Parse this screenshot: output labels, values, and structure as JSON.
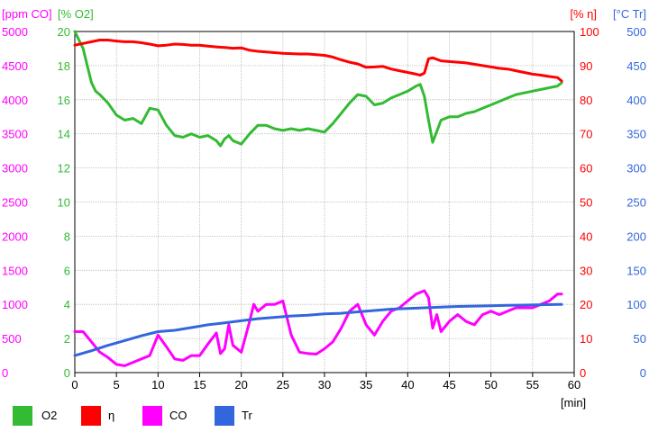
{
  "chart_data": {
    "type": "line",
    "x_unit": "[min]",
    "x_ticks": [
      "0",
      "5",
      "10",
      "15",
      "20",
      "25",
      "30",
      "35",
      "40",
      "45",
      "50",
      "55",
      "60"
    ],
    "xlim": [
      0,
      60
    ],
    "grid": true,
    "legend_position": "bottom",
    "axes": [
      {
        "id": "co",
        "side": "left-outer",
        "unit": "[ppm CO]",
        "range": [
          0,
          5000
        ],
        "color": "#ff00ff",
        "ticks": [
          "0",
          "500",
          "1000",
          "1500",
          "2000",
          "2500",
          "3000",
          "3500",
          "4000",
          "4500",
          "5000"
        ]
      },
      {
        "id": "o2",
        "side": "left-inner",
        "unit": "[% O2]",
        "range": [
          0,
          20
        ],
        "color": "#33bb33",
        "ticks": [
          "0",
          "2",
          "4",
          "6",
          "8",
          "10",
          "12",
          "14",
          "16",
          "18",
          "20"
        ]
      },
      {
        "id": "eta",
        "side": "right-inner",
        "unit": "[% η]",
        "range": [
          0,
          100
        ],
        "color": "#ff0000",
        "ticks": [
          "0",
          "10",
          "20",
          "30",
          "40",
          "50",
          "60",
          "70",
          "80",
          "90",
          "100"
        ]
      },
      {
        "id": "tr",
        "side": "right-outer",
        "unit": "[°C Tr]",
        "range": [
          0,
          500
        ],
        "color": "#3366dd",
        "ticks": [
          "0",
          "50",
          "100",
          "150",
          "200",
          "250",
          "300",
          "350",
          "400",
          "450",
          "500"
        ]
      }
    ],
    "series": [
      {
        "name": "O2",
        "axis": "o2",
        "color": "#33bb33",
        "x": [
          0,
          1,
          1.5,
          2,
          2.5,
          3,
          4,
          5,
          6,
          7,
          8,
          9,
          10,
          11,
          12,
          13,
          14,
          15,
          16,
          17,
          17.5,
          18,
          18.5,
          19,
          20,
          21,
          22,
          23,
          24,
          25,
          26,
          27,
          28,
          29,
          30,
          31,
          32,
          33,
          34,
          35,
          36,
          37,
          38,
          39,
          40,
          41,
          41.5,
          42,
          42.5,
          43,
          44,
          45,
          46,
          47,
          48,
          49,
          50,
          51,
          52,
          53,
          54,
          55,
          56,
          57,
          58,
          58.5
        ],
        "y": [
          20,
          19,
          18,
          17,
          16.5,
          16.3,
          15.8,
          15.1,
          14.8,
          14.9,
          14.6,
          15.5,
          15.4,
          14.5,
          13.9,
          13.8,
          14,
          13.8,
          13.9,
          13.6,
          13.3,
          13.7,
          13.9,
          13.6,
          13.4,
          14,
          14.5,
          14.5,
          14.3,
          14.2,
          14.3,
          14.2,
          14.3,
          14.2,
          14.1,
          14.6,
          15.2,
          15.8,
          16.3,
          16.2,
          15.7,
          15.8,
          16.1,
          16.3,
          16.5,
          16.8,
          16.9,
          16.2,
          14.8,
          13.5,
          14.8,
          15,
          15,
          15.2,
          15.3,
          15.5,
          15.7,
          15.9,
          16.1,
          16.3,
          16.4,
          16.5,
          16.6,
          16.7,
          16.8,
          17
        ]
      },
      {
        "name": "η",
        "axis": "eta",
        "color": "#ff0000",
        "x": [
          0,
          1,
          2,
          3,
          4,
          5,
          6,
          7,
          8,
          9,
          10,
          11,
          12,
          13,
          14,
          15,
          16,
          17,
          18,
          19,
          20,
          21,
          22,
          23,
          24,
          25,
          26,
          27,
          28,
          29,
          30,
          31,
          32,
          33,
          34,
          35,
          36,
          37,
          38,
          39,
          40,
          41,
          41.5,
          42,
          42.5,
          43,
          44,
          45,
          46,
          47,
          48,
          49,
          50,
          51,
          52,
          53,
          54,
          55,
          56,
          57,
          58,
          58.5
        ],
        "y": [
          96,
          96.5,
          97,
          97.5,
          97.5,
          97.2,
          97,
          97,
          96.7,
          96.3,
          95.8,
          96,
          96.3,
          96.2,
          96,
          96,
          95.7,
          95.5,
          95.3,
          95.1,
          95.2,
          94.5,
          94.2,
          94,
          93.8,
          93.6,
          93.5,
          93.4,
          93.4,
          93.2,
          93,
          92.5,
          91.7,
          91,
          90.5,
          89.5,
          89.6,
          89.8,
          89,
          88.5,
          88,
          87.5,
          87.2,
          87.8,
          92,
          92.3,
          91.4,
          91.2,
          91,
          90.8,
          90.4,
          90,
          89.6,
          89.2,
          89,
          88.5,
          88,
          87.5,
          87.2,
          86.8,
          86.5,
          85.5
        ]
      },
      {
        "name": "CO",
        "axis": "co",
        "color": "#ff00ff",
        "x": [
          0,
          1,
          2,
          3,
          4,
          5,
          6,
          7,
          8,
          9,
          10,
          11,
          12,
          13,
          14,
          15,
          16,
          17,
          17.5,
          18,
          18.5,
          19,
          20,
          21,
          21.5,
          22,
          23,
          24,
          25,
          26,
          27,
          28,
          29,
          30,
          31,
          32,
          33,
          34,
          35,
          36,
          37,
          38,
          39,
          40,
          41,
          42,
          42.5,
          43,
          43.5,
          44,
          45,
          46,
          47,
          48,
          49,
          50,
          51,
          52,
          53,
          54,
          55,
          56,
          57,
          58,
          58.5
        ],
        "y": [
          600,
          600,
          450,
          300,
          220,
          120,
          100,
          150,
          200,
          250,
          550,
          380,
          200,
          180,
          250,
          250,
          420,
          580,
          280,
          350,
          700,
          400,
          300,
          750,
          1000,
          900,
          1000,
          1000,
          1050,
          550,
          300,
          280,
          270,
          350,
          450,
          650,
          900,
          1000,
          700,
          550,
          750,
          900,
          950,
          1050,
          1150,
          1200,
          1100,
          650,
          850,
          600,
          750,
          850,
          750,
          700,
          850,
          900,
          850,
          900,
          950,
          950,
          950,
          1000,
          1050,
          1150,
          1150
        ]
      },
      {
        "name": "Tr",
        "axis": "tr",
        "color": "#3366dd",
        "x": [
          0,
          2,
          4,
          6,
          8,
          10,
          12,
          14,
          16,
          18,
          20,
          22,
          24,
          26,
          28,
          30,
          32,
          34,
          36,
          38,
          40,
          42,
          44,
          46,
          48,
          50,
          52,
          54,
          56,
          58,
          58.5
        ],
        "y": [
          25,
          32,
          40,
          47,
          54,
          60,
          62,
          66,
          70,
          73,
          76,
          79,
          81,
          83,
          84,
          86,
          87,
          89,
          91,
          93,
          94,
          95,
          96,
          97,
          97.5,
          98,
          98.5,
          99,
          99.5,
          100,
          100
        ]
      }
    ]
  }
}
